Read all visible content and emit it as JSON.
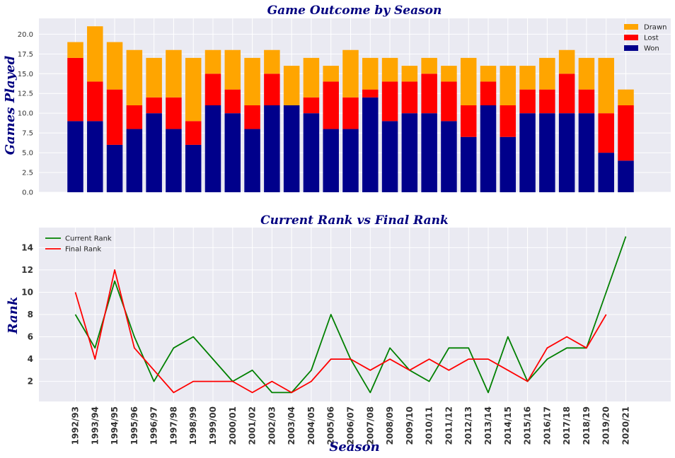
{
  "chart_data": [
    {
      "type": "bar",
      "stacked": true,
      "title": "Game Outcome by Season",
      "xlabel": "",
      "ylabel": "Games Played",
      "ylim": [
        0,
        22
      ],
      "yticks": [
        "0.0",
        "2.5",
        "5.0",
        "7.5",
        "10.0",
        "12.5",
        "15.0",
        "17.5",
        "20.0"
      ],
      "grid": true,
      "legend": "top-right",
      "categories": [
        "1992/93",
        "1993/94",
        "1994/95",
        "1995/96",
        "1996/97",
        "1997/98",
        "1998/99",
        "1999/00",
        "2000/01",
        "2001/02",
        "2002/03",
        "2003/04",
        "2004/05",
        "2005/06",
        "2006/07",
        "2007/08",
        "2008/09",
        "2009/10",
        "2010/11",
        "2011/12",
        "2012/13",
        "2013/14",
        "2014/15",
        "2015/16",
        "2016/17",
        "2017/18",
        "2018/19",
        "2019/20",
        "2020/21"
      ],
      "series": [
        {
          "name": "Won",
          "color": "#00008b",
          "values": [
            9,
            9,
            6,
            8,
            10,
            8,
            6,
            11,
            10,
            8,
            11,
            11,
            10,
            8,
            8,
            12,
            9,
            10,
            10,
            9,
            7,
            11,
            7,
            10,
            10,
            10,
            10,
            5,
            4
          ]
        },
        {
          "name": "Lost",
          "color": "#ff0000",
          "values": [
            8,
            5,
            7,
            3,
            2,
            4,
            3,
            4,
            3,
            3,
            4,
            0,
            2,
            6,
            4,
            1,
            5,
            4,
            5,
            5,
            4,
            3,
            4,
            3,
            3,
            5,
            3,
            5,
            7
          ]
        },
        {
          "name": "Drawn",
          "color": "#ffa500",
          "values": [
            2,
            7,
            6,
            7,
            5,
            6,
            8,
            3,
            5,
            6,
            3,
            5,
            5,
            2,
            6,
            4,
            3,
            2,
            2,
            2,
            6,
            2,
            5,
            3,
            4,
            3,
            4,
            7,
            2
          ]
        }
      ]
    },
    {
      "type": "line",
      "title": "Current Rank vs Final Rank",
      "xlabel": "Season",
      "ylabel": "Rank",
      "ylim": [
        0.2,
        15.8
      ],
      "yticks": [
        "2",
        "4",
        "6",
        "8",
        "10",
        "12",
        "14"
      ],
      "grid": true,
      "legend": "top-left",
      "categories": [
        "1992/93",
        "1993/94",
        "1994/95",
        "1995/96",
        "1996/97",
        "1997/98",
        "1998/99",
        "1999/00",
        "2000/01",
        "2001/02",
        "2002/03",
        "2003/04",
        "2004/05",
        "2005/06",
        "2006/07",
        "2007/08",
        "2008/09",
        "2009/10",
        "2010/11",
        "2011/12",
        "2012/13",
        "2013/14",
        "2014/15",
        "2015/16",
        "2016/17",
        "2017/18",
        "2018/19",
        "2019/20",
        "2020/21"
      ],
      "series": [
        {
          "name": "Current Rank",
          "color": "#008000",
          "values": [
            8,
            5,
            11,
            6,
            2,
            5,
            6,
            4,
            2,
            3,
            1,
            1,
            3,
            8,
            4,
            1,
            5,
            3,
            2,
            5,
            5,
            1,
            6,
            2,
            4,
            5,
            5,
            10,
            15
          ]
        },
        {
          "name": "Final Rank",
          "color": "#ff0000",
          "values": [
            10,
            4,
            12,
            5,
            3,
            1,
            2,
            2,
            2,
            1,
            2,
            1,
            2,
            4,
            4,
            3,
            4,
            3,
            4,
            3,
            4,
            4,
            3,
            2,
            5,
            6,
            5,
            8,
            null
          ]
        }
      ]
    }
  ]
}
